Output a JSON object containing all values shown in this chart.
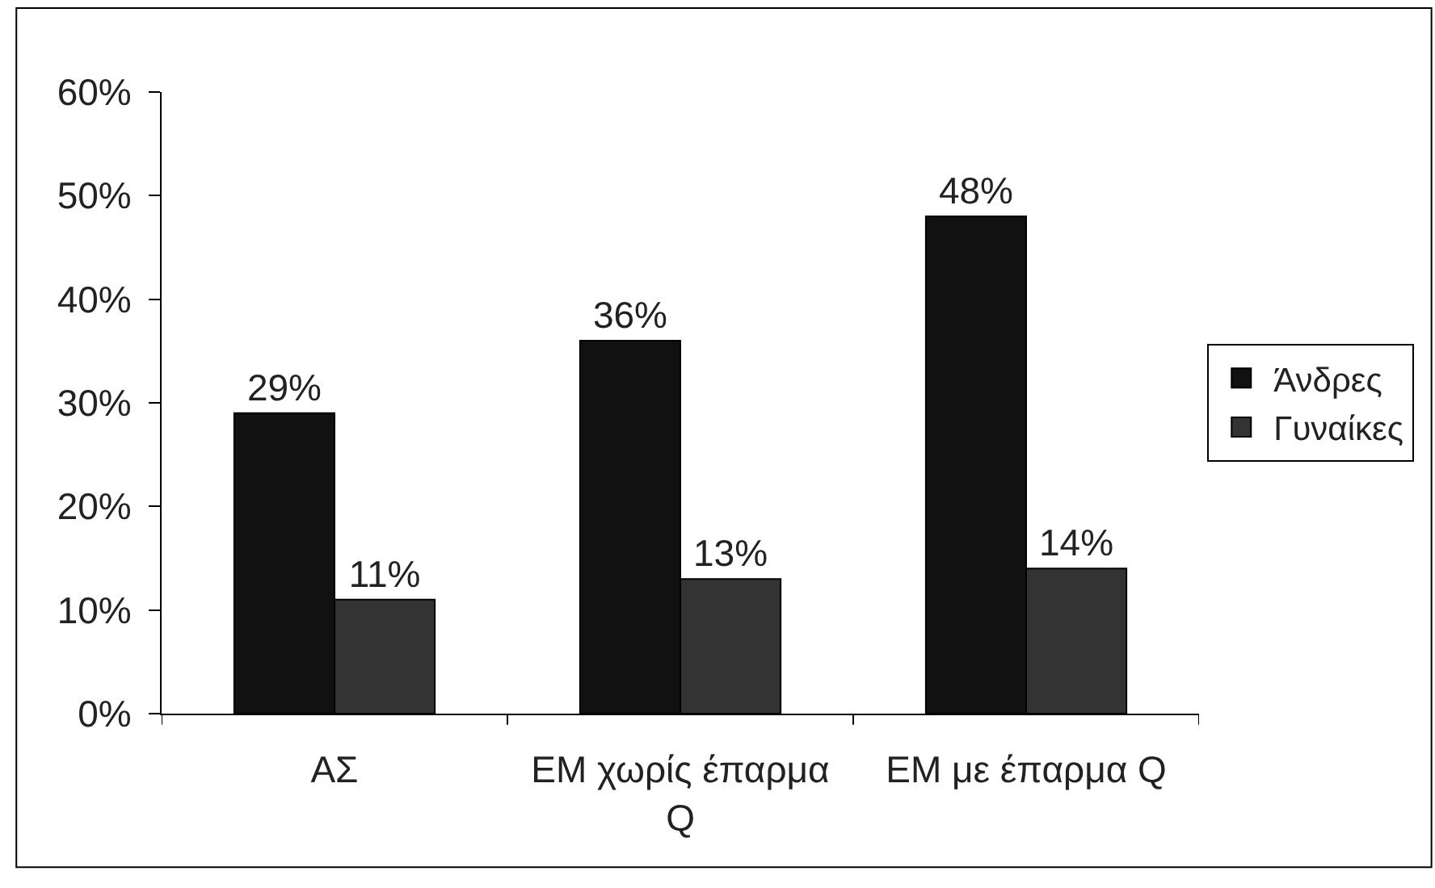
{
  "chart_data": {
    "type": "bar",
    "categories": [
      "ΑΣ",
      "ΕΜ χωρίς έπαρμα Q",
      "ΕΜ με έπαρμα Q"
    ],
    "series": [
      {
        "name": "Άνδρες",
        "color": "#111111",
        "values": [
          29,
          36,
          48
        ],
        "value_labels": [
          "29%",
          "36%",
          "48%"
        ]
      },
      {
        "name": "Γυναίκες",
        "color": "#333333",
        "values": [
          11,
          13,
          14
        ],
        "value_labels": [
          "11%",
          "13%",
          "14%"
        ]
      }
    ],
    "ylim": [
      0,
      60
    ],
    "yticks": [
      {
        "value": 0,
        "label": "0%"
      },
      {
        "value": 10,
        "label": "10%"
      },
      {
        "value": 20,
        "label": "20%"
      },
      {
        "value": 30,
        "label": "30%"
      },
      {
        "value": 40,
        "label": "40%"
      },
      {
        "value": 50,
        "label": "50%"
      },
      {
        "value": 60,
        "label": "60%"
      }
    ],
    "legend": "right"
  }
}
